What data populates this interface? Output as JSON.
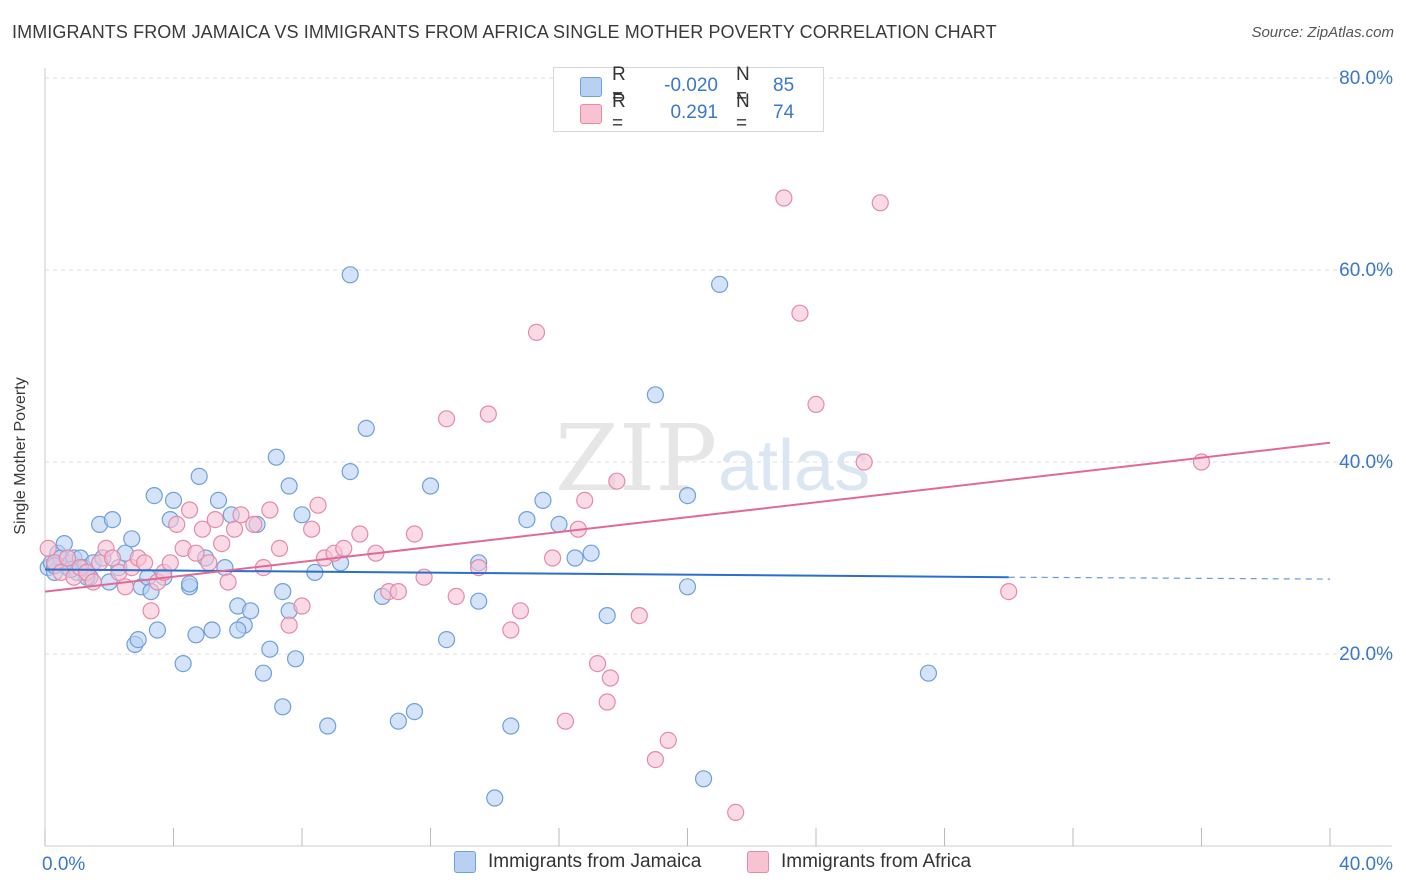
{
  "title": "IMMIGRANTS FROM JAMAICA VS IMMIGRANTS FROM AFRICA SINGLE MOTHER POVERTY CORRELATION CHART",
  "source": "Source: ZipAtlas.com",
  "watermark": {
    "part1": "ZIP",
    "part2": "atlas"
  },
  "colors": {
    "jamaica_fill": "#b8d1f2",
    "jamaica_stroke": "#6f9fdc",
    "jamaica_line": "#2a6fcc",
    "africa_fill": "#f7c3d3",
    "africa_stroke": "#e58aa7",
    "africa_line": "#e06a95",
    "grid": "#dddddd",
    "axis_text": "#3a78c8"
  },
  "legend": {
    "rows": [
      {
        "r_label": "R =",
        "r_value": "-0.020",
        "n_label": "N =",
        "n_value": "85"
      },
      {
        "r_label": "R =",
        "r_value": "0.291",
        "n_label": "N =",
        "n_value": "74"
      }
    ]
  },
  "chart_data": {
    "type": "scatter",
    "title": "IMMIGRANTS FROM JAMAICA VS IMMIGRANTS FROM AFRICA SINGLE MOTHER POVERTY CORRELATION CHART",
    "xlabel": "",
    "ylabel": "Single Mother Poverty",
    "xlim": [
      0,
      40
    ],
    "ylim": [
      0,
      80
    ],
    "x_tick_labels": [
      "0.0%",
      "40.0%"
    ],
    "y_ticks": [
      20,
      40,
      60,
      80
    ],
    "y_tick_labels": [
      "20.0%",
      "40.0%",
      "60.0%",
      "80.0%"
    ],
    "grid": true,
    "series": [
      {
        "name": "Immigrants from Jamaica",
        "r": -0.02,
        "n": 85,
        "trend": {
          "x0": 0,
          "y0": 28.8,
          "x1": 30.0,
          "y1": 28.0,
          "dash_to_x": 40,
          "dash_to_y": 27.8
        },
        "points": [
          [
            0.1,
            29.0
          ],
          [
            0.2,
            29.5
          ],
          [
            0.3,
            28.5
          ],
          [
            0.4,
            30.5
          ],
          [
            0.5,
            30.0
          ],
          [
            0.6,
            31.5
          ],
          [
            0.7,
            29.0
          ],
          [
            0.8,
            29.5
          ],
          [
            0.9,
            30.0
          ],
          [
            1.0,
            28.5
          ],
          [
            1.1,
            30.0
          ],
          [
            1.2,
            29.0
          ],
          [
            1.4,
            28.0
          ],
          [
            1.5,
            29.5
          ],
          [
            1.7,
            33.5
          ],
          [
            1.8,
            30.0
          ],
          [
            2.0,
            27.5
          ],
          [
            2.1,
            34.0
          ],
          [
            2.3,
            29.0
          ],
          [
            2.5,
            30.5
          ],
          [
            2.7,
            32.0
          ],
          [
            2.8,
            21.0
          ],
          [
            3.0,
            27.0
          ],
          [
            3.2,
            28.0
          ],
          [
            3.4,
            36.5
          ],
          [
            3.5,
            22.5
          ],
          [
            3.7,
            28.0
          ],
          [
            3.9,
            34.0
          ],
          [
            4.0,
            36.0
          ],
          [
            4.3,
            19.0
          ],
          [
            4.5,
            27.0
          ],
          [
            4.7,
            22.0
          ],
          [
            4.8,
            38.5
          ],
          [
            5.0,
            30.0
          ],
          [
            5.2,
            22.5
          ],
          [
            5.4,
            36.0
          ],
          [
            5.6,
            29.0
          ],
          [
            5.8,
            34.5
          ],
          [
            6.0,
            25.0
          ],
          [
            6.2,
            23.0
          ],
          [
            6.4,
            24.5
          ],
          [
            6.6,
            33.5
          ],
          [
            6.8,
            18.0
          ],
          [
            7.0,
            20.5
          ],
          [
            7.2,
            40.5
          ],
          [
            7.4,
            26.5
          ],
          [
            7.6,
            37.5
          ],
          [
            7.8,
            19.5
          ],
          [
            8.0,
            34.5
          ],
          [
            8.4,
            28.5
          ],
          [
            8.8,
            12.5
          ],
          [
            9.2,
            29.5
          ],
          [
            9.5,
            39.0
          ],
          [
            10.0,
            43.5
          ],
          [
            10.5,
            26.0
          ],
          [
            11.0,
            13.0
          ],
          [
            11.5,
            14.0
          ],
          [
            12.0,
            37.5
          ],
          [
            12.5,
            21.5
          ],
          [
            13.5,
            29.5
          ],
          [
            13.5,
            25.5
          ],
          [
            14.5,
            12.5
          ],
          [
            15.0,
            34.0
          ],
          [
            15.5,
            36.0
          ],
          [
            16.0,
            33.5
          ],
          [
            16.5,
            30.0
          ],
          [
            17.0,
            30.5
          ],
          [
            17.5,
            24.0
          ],
          [
            19.0,
            47.0
          ],
          [
            20.0,
            27.0
          ],
          [
            20.0,
            36.5
          ],
          [
            20.5,
            7.0
          ],
          [
            21.0,
            58.5
          ],
          [
            9.5,
            59.5
          ],
          [
            14.0,
            5.0
          ],
          [
            27.5,
            18.0
          ],
          [
            3.3,
            26.5
          ],
          [
            4.5,
            27.3
          ],
          [
            2.9,
            21.5
          ],
          [
            1.3,
            28.0
          ],
          [
            0.8,
            28.8
          ],
          [
            0.3,
            29.2
          ],
          [
            6.0,
            22.5
          ],
          [
            7.4,
            14.5
          ],
          [
            7.6,
            24.5
          ]
        ]
      },
      {
        "name": "Immigrants from Africa",
        "r": 0.291,
        "n": 74,
        "trend": {
          "x0": 0,
          "y0": 26.5,
          "x1": 40,
          "y1": 42.0
        },
        "points": [
          [
            0.1,
            31.0
          ],
          [
            0.3,
            29.5
          ],
          [
            0.5,
            28.5
          ],
          [
            0.7,
            30.0
          ],
          [
            0.9,
            28.0
          ],
          [
            1.1,
            29.0
          ],
          [
            1.3,
            28.5
          ],
          [
            1.5,
            27.5
          ],
          [
            1.7,
            29.5
          ],
          [
            1.9,
            31.0
          ],
          [
            2.1,
            30.0
          ],
          [
            2.3,
            28.5
          ],
          [
            2.5,
            27.0
          ],
          [
            2.7,
            29.0
          ],
          [
            2.9,
            30.0
          ],
          [
            3.1,
            29.5
          ],
          [
            3.3,
            24.5
          ],
          [
            3.5,
            27.5
          ],
          [
            3.7,
            28.5
          ],
          [
            3.9,
            29.5
          ],
          [
            4.1,
            33.5
          ],
          [
            4.3,
            31.0
          ],
          [
            4.5,
            35.0
          ],
          [
            4.7,
            30.5
          ],
          [
            4.9,
            33.0
          ],
          [
            5.1,
            29.5
          ],
          [
            5.3,
            34.0
          ],
          [
            5.5,
            31.5
          ],
          [
            5.7,
            27.5
          ],
          [
            5.9,
            33.0
          ],
          [
            6.1,
            34.5
          ],
          [
            6.5,
            33.5
          ],
          [
            6.8,
            29.0
          ],
          [
            7.0,
            35.0
          ],
          [
            7.3,
            31.0
          ],
          [
            7.6,
            23.0
          ],
          [
            8.0,
            25.0
          ],
          [
            8.3,
            33.0
          ],
          [
            8.7,
            30.0
          ],
          [
            9.0,
            30.5
          ],
          [
            9.3,
            31.0
          ],
          [
            9.8,
            32.5
          ],
          [
            10.3,
            30.5
          ],
          [
            10.7,
            26.5
          ],
          [
            11.0,
            26.5
          ],
          [
            11.5,
            32.5
          ],
          [
            11.8,
            28.0
          ],
          [
            12.5,
            44.5
          ],
          [
            12.8,
            26.0
          ],
          [
            13.5,
            29.0
          ],
          [
            13.8,
            45.0
          ],
          [
            14.5,
            22.5
          ],
          [
            14.8,
            24.5
          ],
          [
            15.3,
            53.5
          ],
          [
            15.8,
            30.0
          ],
          [
            16.2,
            13.0
          ],
          [
            16.6,
            33.0
          ],
          [
            16.8,
            36.0
          ],
          [
            17.2,
            19.0
          ],
          [
            17.5,
            15.0
          ],
          [
            17.6,
            17.5
          ],
          [
            17.8,
            38.0
          ],
          [
            18.5,
            24.0
          ],
          [
            19.0,
            9.0
          ],
          [
            19.4,
            11.0
          ],
          [
            21.5,
            3.5
          ],
          [
            23.0,
            67.5
          ],
          [
            23.5,
            55.5
          ],
          [
            24.0,
            46.0
          ],
          [
            25.5,
            40.0
          ],
          [
            26.0,
            67.0
          ],
          [
            36.0,
            40.0
          ],
          [
            30.0,
            26.5
          ],
          [
            8.5,
            35.5
          ]
        ]
      }
    ]
  },
  "bottom_legend": {
    "items": [
      {
        "label": "Immigrants from Jamaica"
      },
      {
        "label": "Immigrants from Africa"
      }
    ]
  }
}
